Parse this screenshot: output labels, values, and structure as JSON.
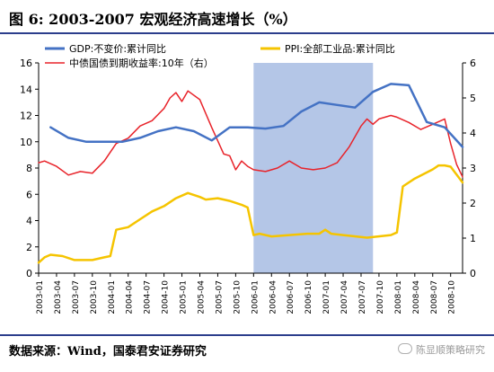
{
  "header": {
    "title": "图 6:  2003-2007 宏观经济高速增长（%）"
  },
  "footer": {
    "source": "数据来源：Wind，国泰君安证券研究",
    "watermark": "陈显顺策略研究"
  },
  "colors": {
    "gdp": "#4472c4",
    "bond": "#e8232a",
    "ppi": "#f5c400",
    "shade": "#b4c6e7",
    "rule": "#2c3e8c"
  },
  "chart_data": {
    "type": "line",
    "x_ticks": [
      "2003-01",
      "2003-04",
      "2003-07",
      "2003-10",
      "2004-01",
      "2004-04",
      "2004-07",
      "2004-10",
      "2005-01",
      "2005-04",
      "2005-07",
      "2005-10",
      "2006-01",
      "2006-04",
      "2006-07",
      "2006-10",
      "2007-01",
      "2007-04",
      "2007-07",
      "2007-10",
      "2008-01",
      "2008-04",
      "2008-07",
      "2008-10"
    ],
    "y_left": {
      "min": 0,
      "max": 16,
      "ticks": [
        0,
        2,
        4,
        6,
        8,
        10,
        12,
        14,
        16
      ]
    },
    "y_right": {
      "min": 0,
      "max": 6,
      "ticks": [
        0,
        1,
        2,
        3,
        4,
        5,
        6
      ]
    },
    "shaded_range": [
      "2006-01",
      "2007-09"
    ],
    "legend": [
      {
        "label": "GDP:不变价:累计同比",
        "series": "gdp"
      },
      {
        "label": "PPI:全部工业品:累计同比",
        "series": "ppi"
      },
      {
        "label": "中债国债到期收益率:10年（右）",
        "series": "bond"
      }
    ],
    "series": [
      {
        "key": "gdp",
        "name": "GDP:不变价:累计同比",
        "axis": "left",
        "points": [
          [
            "2003-03",
            11.1
          ],
          [
            "2003-06",
            10.3
          ],
          [
            "2003-09",
            10.0
          ],
          [
            "2003-12",
            10.0
          ],
          [
            "2004-03",
            10.0
          ],
          [
            "2004-06",
            10.3
          ],
          [
            "2004-09",
            10.8
          ],
          [
            "2004-12",
            11.1
          ],
          [
            "2005-03",
            10.8
          ],
          [
            "2005-06",
            10.1
          ],
          [
            "2005-09",
            11.1
          ],
          [
            "2005-12",
            11.1
          ],
          [
            "2006-03",
            11.0
          ],
          [
            "2006-06",
            11.2
          ],
          [
            "2006-09",
            12.3
          ],
          [
            "2006-12",
            13.0
          ],
          [
            "2007-03",
            12.8
          ],
          [
            "2007-06",
            12.6
          ],
          [
            "2007-09",
            13.8
          ],
          [
            "2007-12",
            14.4
          ],
          [
            "2008-03",
            14.3
          ],
          [
            "2008-06",
            11.5
          ],
          [
            "2008-09",
            11.1
          ],
          [
            "2008-12",
            9.6
          ]
        ]
      },
      {
        "key": "ppi",
        "name": "PPI:全部工业品:累计同比",
        "axis": "left",
        "points": [
          [
            "2003-01",
            0.8
          ],
          [
            "2003-02",
            1.2
          ],
          [
            "2003-03",
            1.4
          ],
          [
            "2003-05",
            1.3
          ],
          [
            "2003-07",
            1.0
          ],
          [
            "2003-09",
            1.0
          ],
          [
            "2003-10",
            1.0
          ],
          [
            "2003-12",
            1.2
          ],
          [
            "2004-01",
            1.3
          ],
          [
            "2004-02",
            3.3
          ],
          [
            "2004-04",
            3.5
          ],
          [
            "2004-06",
            4.1
          ],
          [
            "2004-08",
            4.7
          ],
          [
            "2004-10",
            5.1
          ],
          [
            "2004-12",
            5.7
          ],
          [
            "2005-02",
            6.1
          ],
          [
            "2005-04",
            5.8
          ],
          [
            "2005-05",
            5.6
          ],
          [
            "2005-07",
            5.7
          ],
          [
            "2005-09",
            5.5
          ],
          [
            "2005-11",
            5.2
          ],
          [
            "2005-12",
            5.0
          ],
          [
            "2006-01",
            2.9
          ],
          [
            "2006-02",
            3.0
          ],
          [
            "2006-04",
            2.8
          ],
          [
            "2006-07",
            2.9
          ],
          [
            "2006-10",
            3.0
          ],
          [
            "2006-12",
            3.0
          ],
          [
            "2007-01",
            3.3
          ],
          [
            "2007-02",
            3.0
          ],
          [
            "2007-04",
            2.9
          ],
          [
            "2007-08",
            2.7
          ],
          [
            "2007-12",
            2.9
          ],
          [
            "2008-01",
            3.1
          ],
          [
            "2008-02",
            6.6
          ],
          [
            "2008-04",
            7.2
          ],
          [
            "2008-07",
            7.9
          ],
          [
            "2008-08",
            8.2
          ],
          [
            "2008-09",
            8.2
          ],
          [
            "2008-10",
            8.1
          ],
          [
            "2008-12",
            6.9
          ]
        ]
      },
      {
        "key": "bond",
        "name": "中债国债到期收益率:10年（右）",
        "axis": "right",
        "points": [
          [
            "2003-01",
            3.15
          ],
          [
            "2003-02",
            3.2
          ],
          [
            "2003-04",
            3.05
          ],
          [
            "2003-06",
            2.8
          ],
          [
            "2003-08",
            2.9
          ],
          [
            "2003-10",
            2.85
          ],
          [
            "2003-12",
            3.2
          ],
          [
            "2004-02",
            3.7
          ],
          [
            "2004-04",
            3.85
          ],
          [
            "2004-06",
            4.2
          ],
          [
            "2004-08",
            4.35
          ],
          [
            "2004-10",
            4.7
          ],
          [
            "2004-11",
            5.0
          ],
          [
            "2004-12",
            5.15
          ],
          [
            "2005-01",
            4.9
          ],
          [
            "2005-02",
            5.2
          ],
          [
            "2005-04",
            4.95
          ],
          [
            "2005-06",
            4.15
          ],
          [
            "2005-08",
            3.4
          ],
          [
            "2005-09",
            3.35
          ],
          [
            "2005-10",
            2.95
          ],
          [
            "2005-11",
            3.2
          ],
          [
            "2005-12",
            3.05
          ],
          [
            "2006-01",
            2.95
          ],
          [
            "2006-03",
            2.9
          ],
          [
            "2006-05",
            3.0
          ],
          [
            "2006-07",
            3.2
          ],
          [
            "2006-09",
            3.0
          ],
          [
            "2006-11",
            2.95
          ],
          [
            "2007-01",
            3.0
          ],
          [
            "2007-03",
            3.15
          ],
          [
            "2007-05",
            3.6
          ],
          [
            "2007-07",
            4.2
          ],
          [
            "2007-08",
            4.4
          ],
          [
            "2007-09",
            4.25
          ],
          [
            "2007-10",
            4.4
          ],
          [
            "2007-12",
            4.5
          ],
          [
            "2008-01",
            4.45
          ],
          [
            "2008-03",
            4.3
          ],
          [
            "2008-05",
            4.1
          ],
          [
            "2008-07",
            4.25
          ],
          [
            "2008-09",
            4.4
          ],
          [
            "2008-10",
            3.7
          ],
          [
            "2008-11",
            3.1
          ],
          [
            "2008-12",
            2.75
          ]
        ]
      }
    ]
  }
}
